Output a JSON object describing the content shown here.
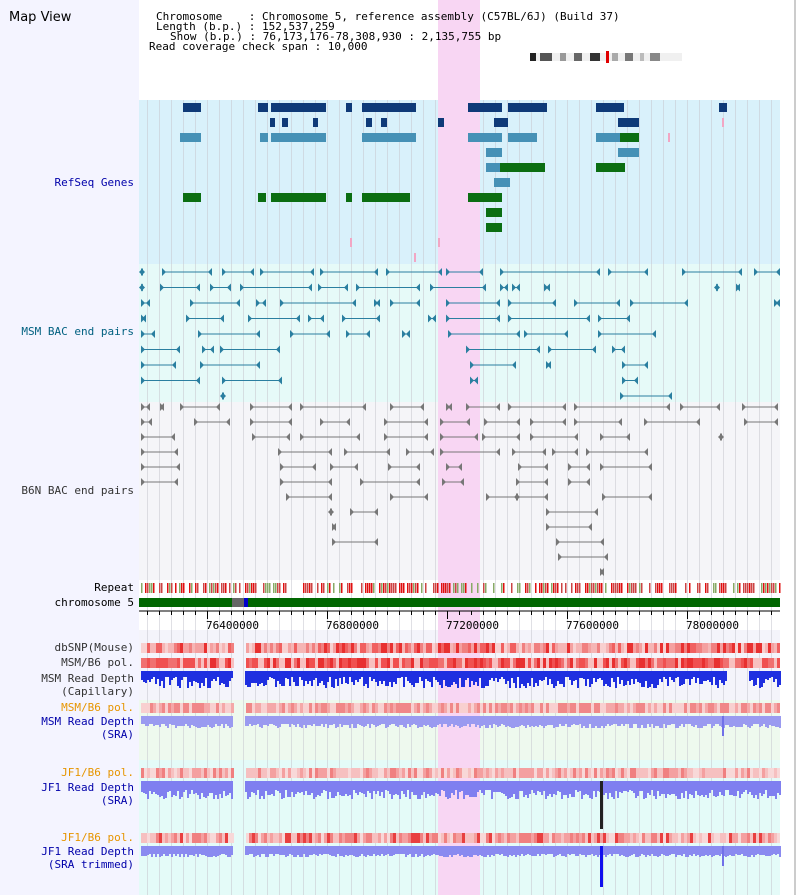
{
  "title": "Map View",
  "header": {
    "lines": [
      "Chromosome    : Chromosome 5, reference assembly (C57BL/6J) (Build 37)",
      "Length (b.p.) : 152,537,259",
      "Show (b.p.) : 76,173,176-78,308,930 : 2,135,755 bp",
      "Read coverage check span : 10,000"
    ]
  },
  "tracks": {
    "refseq": "RefSeq Genes",
    "msm_bac": "MSM BAC end pairs",
    "b6n_bac": "B6N BAC end pairs",
    "repeat": "Repeat",
    "chromosome": "chromosome 5",
    "dbsnp": "dbSNP(Mouse)",
    "msm_pol_1": "MSM/B6 pol.",
    "msm_depth_cap_1": "MSM Read Depth",
    "msm_depth_cap_2": "(Capillary)",
    "msm_pol_2": "MSM/B6 pol.",
    "msm_depth_sra_1": "MSM Read Depth",
    "msm_depth_sra_2": "(SRA)",
    "jf1_pol_1": "JF1/B6 pol.",
    "jf1_depth_sra_1": "JF1 Read Depth",
    "jf1_depth_sra_2": "(SRA)",
    "jf1_pol_2": "JF1/B6 pol.",
    "jf1_depth_trim_1": "JF1 Read Depth",
    "jf1_depth_trim_2": "(SRA trimmed)"
  },
  "axis": {
    "ticks": [
      "76400000",
      "76800000",
      "77200000",
      "77600000",
      "78000000"
    ]
  },
  "colors": {
    "refseq_bg": "#d9f1fb",
    "msm_bac_bg": "#e6faf8",
    "b6n_bac_bg": "#f5f5f8",
    "highlight": "#f8d6f3",
    "gene_navy": "#0f3a78",
    "gene_steel": "#4691b6",
    "gene_green": "#0b6e12",
    "msm_bac_line": "#2a7fa0",
    "b6n_bac_line": "#777777",
    "orange_label": "#e69500",
    "blue_label": "#0000aa",
    "teal_label": "#006080"
  }
}
